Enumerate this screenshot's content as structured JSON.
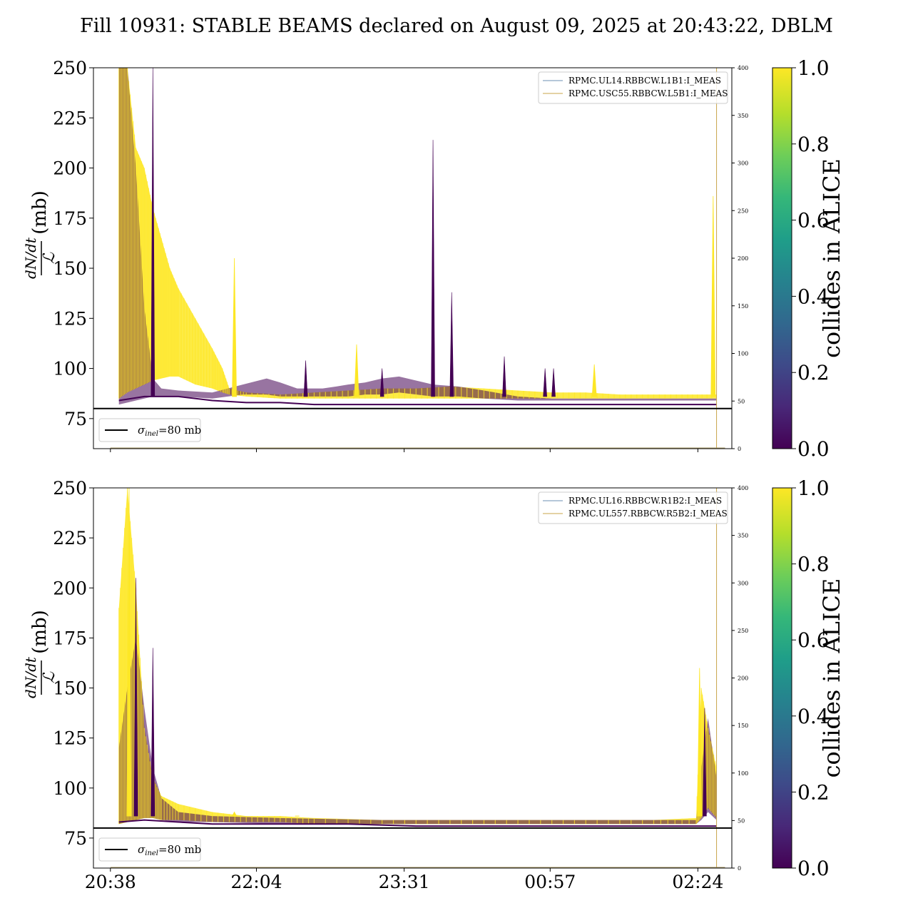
{
  "figure": {
    "title": "Fill 10931: STABLE BEAMS declared on August 09, 2025 at 20:43:22, DBLM"
  },
  "chart_data": [
    {
      "type": "line",
      "panel": "top",
      "ylabel_numerator": "dN/dt",
      "ylabel_denominator": "ℒ",
      "ylabel_unit": "(mb)",
      "ylim": [
        60,
        250
      ],
      "yticks": [
        75,
        100,
        125,
        150,
        175,
        200,
        225,
        250
      ],
      "y2lim": [
        0,
        400
      ],
      "y2ticks": [
        0,
        50,
        100,
        150,
        200,
        250,
        300,
        350,
        400
      ],
      "xlim_minutes": [
        -10,
        366
      ],
      "xticks": [
        {
          "label": "20:38",
          "t": 0
        },
        {
          "label": "22:04",
          "t": 86
        },
        {
          "label": "23:31",
          "t": 173
        },
        {
          "label": "00:57",
          "t": 259
        },
        {
          "label": "02:24",
          "t": 346
        }
      ],
      "hline": {
        "y": 80,
        "label": "σinel=80 mb",
        "label_main": "σ",
        "label_sub": "inel",
        "label_rest": "=80 mb"
      },
      "legend_position": "upper right",
      "series": [
        {
          "name": "RPMC.UL14.RBBCW.L1B1:I_MEAS",
          "color": "#6b8fb3"
        },
        {
          "name": "RPMC.USC55.RBBCW.L5B1:I_MEAS",
          "color": "#c8a44a"
        }
      ],
      "baseline": [
        [
          5,
          84
        ],
        [
          20,
          86
        ],
        [
          40,
          86
        ],
        [
          60,
          84
        ],
        [
          80,
          83
        ],
        [
          100,
          83
        ],
        [
          120,
          82
        ],
        [
          140,
          82
        ],
        [
          160,
          82
        ],
        [
          180,
          82
        ],
        [
          200,
          82
        ],
        [
          220,
          82
        ],
        [
          240,
          82
        ],
        [
          260,
          82
        ],
        [
          280,
          82
        ],
        [
          300,
          82
        ],
        [
          320,
          82
        ],
        [
          340,
          82
        ],
        [
          357,
          82
        ]
      ],
      "yellow_band": [
        [
          5,
          250,
          85
        ],
        [
          10,
          250,
          88
        ],
        [
          15,
          210,
          90
        ],
        [
          20,
          200,
          92
        ],
        [
          25,
          180,
          94
        ],
        [
          30,
          165,
          95
        ],
        [
          35,
          150,
          96
        ],
        [
          40,
          140,
          96
        ],
        [
          50,
          125,
          92
        ],
        [
          60,
          110,
          90
        ],
        [
          66,
          100,
          88
        ],
        [
          70,
          90,
          87
        ],
        [
          80,
          88,
          86
        ],
        [
          100,
          87,
          85
        ],
        [
          120,
          88,
          85
        ],
        [
          140,
          89,
          85
        ],
        [
          160,
          90,
          85
        ],
        [
          180,
          90,
          85
        ],
        [
          200,
          91,
          85
        ],
        [
          220,
          90,
          85
        ],
        [
          240,
          89,
          85
        ],
        [
          260,
          88,
          85
        ],
        [
          280,
          88,
          85
        ],
        [
          300,
          87,
          85
        ],
        [
          320,
          87,
          85
        ],
        [
          340,
          87,
          85
        ],
        [
          357,
          87,
          85
        ]
      ],
      "purple_band": [
        [
          5,
          250,
          82
        ],
        [
          10,
          250,
          83
        ],
        [
          15,
          200,
          84
        ],
        [
          20,
          130,
          85
        ],
        [
          25,
          95,
          86
        ],
        [
          30,
          90,
          86
        ],
        [
          40,
          89,
          86
        ],
        [
          60,
          88,
          85
        ],
        [
          78,
          92,
          87
        ],
        [
          92,
          95,
          87
        ],
        [
          100,
          93,
          86
        ],
        [
          110,
          90,
          86
        ],
        [
          125,
          90,
          86
        ],
        [
          133,
          91,
          86
        ],
        [
          140,
          92,
          86
        ],
        [
          150,
          93,
          87
        ],
        [
          160,
          95,
          87
        ],
        [
          170,
          96,
          88
        ],
        [
          190,
          92,
          86
        ],
        [
          205,
          91,
          86
        ],
        [
          220,
          89,
          85
        ],
        [
          240,
          86,
          84
        ],
        [
          260,
          85,
          84
        ],
        [
          280,
          85,
          84
        ],
        [
          300,
          85,
          84
        ],
        [
          320,
          85,
          84
        ],
        [
          340,
          85,
          84
        ],
        [
          357,
          85,
          84
        ]
      ],
      "yellow_spikes": [
        [
          73,
          155
        ],
        [
          145,
          112
        ],
        [
          285,
          102
        ],
        [
          355,
          186
        ]
      ],
      "purple_spikes": [
        [
          25,
          250
        ],
        [
          115,
          104
        ],
        [
          160,
          100
        ],
        [
          190,
          214
        ],
        [
          201,
          138
        ],
        [
          232,
          106
        ],
        [
          256,
          100
        ],
        [
          261,
          100
        ]
      ],
      "vline_t": 357
    },
    {
      "type": "line",
      "panel": "bottom",
      "ylabel_numerator": "dN/dt",
      "ylabel_denominator": "ℒ",
      "ylabel_unit": "(mb)",
      "ylim": [
        60,
        250
      ],
      "yticks": [
        75,
        100,
        125,
        150,
        175,
        200,
        225,
        250
      ],
      "y2lim": [
        0,
        400
      ],
      "y2ticks": [
        0,
        50,
        100,
        150,
        200,
        250,
        300,
        350,
        400
      ],
      "xlim_minutes": [
        -10,
        366
      ],
      "xticks": [
        {
          "label": "20:38",
          "t": 0
        },
        {
          "label": "22:04",
          "t": 86
        },
        {
          "label": "23:31",
          "t": 173
        },
        {
          "label": "00:57",
          "t": 259
        },
        {
          "label": "02:24",
          "t": 346
        }
      ],
      "hline": {
        "y": 80,
        "label": "σinel=80 mb",
        "label_main": "σ",
        "label_sub": "inel",
        "label_rest": "=80 mb"
      },
      "legend_position": "upper right",
      "series": [
        {
          "name": "RPMC.UL16.RBBCW.R1B2:I_MEAS",
          "color": "#6b8fb3"
        },
        {
          "name": "RPMC.UL557.RBBCW.R5B2:I_MEAS",
          "color": "#c8a44a"
        }
      ],
      "baseline": [
        [
          5,
          83
        ],
        [
          20,
          84
        ],
        [
          40,
          83
        ],
        [
          60,
          82
        ],
        [
          80,
          82
        ],
        [
          100,
          82
        ],
        [
          140,
          82
        ],
        [
          180,
          81
        ],
        [
          220,
          81
        ],
        [
          260,
          81
        ],
        [
          300,
          81
        ],
        [
          340,
          81
        ],
        [
          357,
          81
        ]
      ],
      "yellow_band": [
        [
          5,
          190,
          82
        ],
        [
          10,
          250,
          83
        ],
        [
          15,
          200,
          84
        ],
        [
          20,
          130,
          85
        ],
        [
          25,
          105,
          85
        ],
        [
          30,
          96,
          84
        ],
        [
          40,
          92,
          84
        ],
        [
          60,
          88,
          83
        ],
        [
          80,
          86,
          83
        ],
        [
          100,
          86,
          83
        ],
        [
          120,
          85,
          82
        ],
        [
          160,
          84,
          82
        ],
        [
          200,
          84,
          82
        ],
        [
          240,
          84,
          82
        ],
        [
          280,
          84,
          82
        ],
        [
          320,
          84,
          82
        ],
        [
          345,
          85,
          82
        ],
        [
          348,
          150,
          85
        ],
        [
          352,
          130,
          90
        ],
        [
          357,
          110,
          85
        ]
      ],
      "purple_band": [
        [
          5,
          120,
          82
        ],
        [
          10,
          150,
          83
        ],
        [
          15,
          175,
          84
        ],
        [
          20,
          140,
          85
        ],
        [
          25,
          110,
          85
        ],
        [
          30,
          95,
          84
        ],
        [
          40,
          88,
          83
        ],
        [
          60,
          86,
          83
        ],
        [
          100,
          85,
          82
        ],
        [
          160,
          84,
          82
        ],
        [
          220,
          84,
          82
        ],
        [
          280,
          84,
          82
        ],
        [
          345,
          84,
          82
        ],
        [
          348,
          110,
          84
        ],
        [
          352,
          135,
          88
        ],
        [
          357,
          105,
          84
        ]
      ],
      "yellow_spikes": [
        [
          11,
          250
        ],
        [
          73,
          88
        ],
        [
          110,
          86
        ],
        [
          347,
          160
        ]
      ],
      "purple_spikes": [
        [
          15,
          205
        ],
        [
          25,
          170
        ],
        [
          350,
          140
        ]
      ],
      "vline_t": 357
    }
  ],
  "colorbars": [
    {
      "label": "collides in ALICE",
      "ticks": [
        "0.0",
        "0.2",
        "0.4",
        "0.6",
        "0.8",
        "1.0"
      ],
      "colormap": [
        "#440154",
        "#482878",
        "#3e4a89",
        "#31688e",
        "#26828e",
        "#1f9e89",
        "#35b779",
        "#6ece58",
        "#b5de2b",
        "#fde725"
      ]
    },
    {
      "label": "collides in ALICE",
      "ticks": [
        "0.0",
        "0.2",
        "0.4",
        "0.6",
        "0.8",
        "1.0"
      ],
      "colormap": [
        "#440154",
        "#482878",
        "#3e4a89",
        "#31688e",
        "#26828e",
        "#1f9e89",
        "#35b779",
        "#6ece58",
        "#b5de2b",
        "#fde725"
      ]
    }
  ],
  "colors": {
    "yellow": "#fde725",
    "purple": "#440154",
    "hline": "#000000"
  }
}
